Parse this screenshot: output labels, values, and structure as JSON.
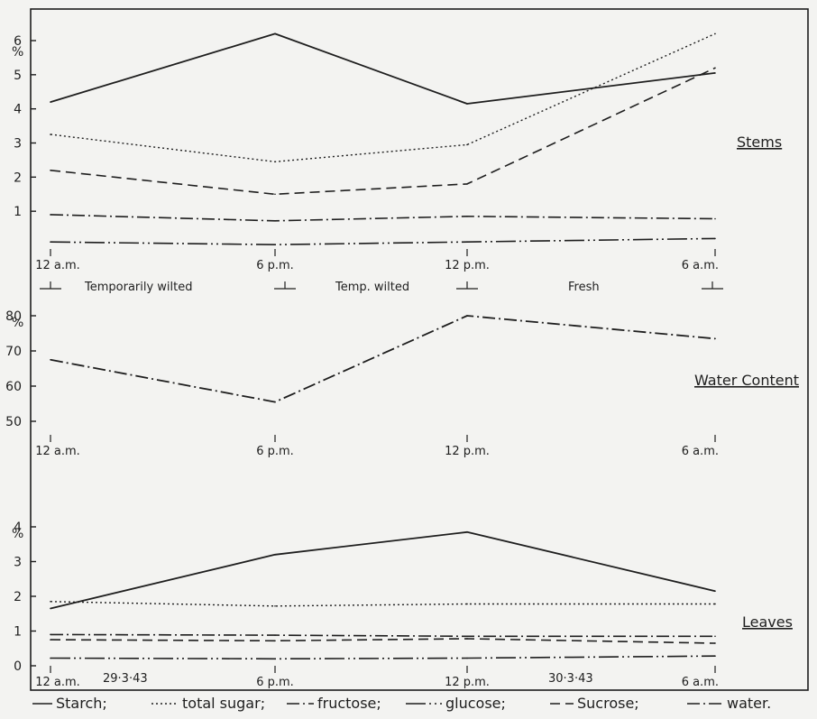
{
  "chart_data": [
    {
      "type": "line",
      "title": "Stems",
      "x": [
        "12 a.m.",
        "6 p.m.",
        "12 p.m.",
        "6 a.m."
      ],
      "y_unit": "%",
      "ylim": [
        0,
        6.3
      ],
      "yticks": [
        "1",
        "2",
        "3",
        "4",
        "5",
        "6"
      ],
      "annotations": [
        "Temporarily wilted",
        "Temp. wilted",
        "Fresh"
      ],
      "series": [
        {
          "name": "Starch",
          "values": [
            4.2,
            6.2,
            4.15,
            5.05
          ]
        },
        {
          "name": "total sugar",
          "values": [
            3.25,
            2.45,
            2.95,
            6.2
          ]
        },
        {
          "name": "Sucrose",
          "values": [
            2.2,
            1.5,
            1.8,
            5.2
          ]
        },
        {
          "name": "fructose",
          "values": [
            0.9,
            0.72,
            0.85,
            0.78
          ]
        },
        {
          "name": "glucose",
          "values": [
            0.1,
            0.02,
            0.1,
            0.2
          ]
        }
      ]
    },
    {
      "type": "line",
      "title": "Water Content",
      "x": [
        "12 a.m.",
        "6 p.m.",
        "12 p.m.",
        "6 a.m."
      ],
      "y_unit": "%",
      "ylim": [
        45,
        82
      ],
      "yticks": [
        "50",
        "60",
        "70",
        "80"
      ],
      "series": [
        {
          "name": "water",
          "values": [
            67.5,
            55.5,
            80,
            73.5
          ]
        }
      ]
    },
    {
      "type": "line",
      "title": "Leaves",
      "x": [
        "12 a.m.",
        "6 p.m.",
        "12 p.m.",
        "6 a.m."
      ],
      "y_unit": "%",
      "ylim": [
        0,
        4.2
      ],
      "yticks": [
        "0",
        "1",
        "2",
        "3",
        "4"
      ],
      "dates": [
        "29·3·43",
        "30·3·43"
      ],
      "series": [
        {
          "name": "Starch",
          "values": [
            1.65,
            3.2,
            3.85,
            2.15
          ]
        },
        {
          "name": "total sugar",
          "values": [
            1.85,
            1.72,
            1.78,
            1.78
          ]
        },
        {
          "name": "fructose",
          "values": [
            0.9,
            0.88,
            0.85,
            0.85
          ]
        },
        {
          "name": "Sucrose",
          "values": [
            0.75,
            0.72,
            0.78,
            0.65
          ]
        },
        {
          "name": "glucose",
          "values": [
            0.22,
            0.2,
            0.22,
            0.28
          ]
        }
      ]
    }
  ],
  "labels": {
    "stems_x": [
      "12 a.m.",
      "6 p.m.",
      "12 p.m.",
      "6 a.m."
    ],
    "water_x": [
      "12 a.m.",
      "6 p.m.",
      "12 p.m.",
      "6 a.m."
    ],
    "leaves_x": [
      "12 a.m.",
      "6 p.m.",
      "12 p.m.",
      "6 a.m."
    ],
    "pct": "%"
  },
  "legend": {
    "items": [
      {
        "label": "Starch;"
      },
      {
        "label": "total sugar;"
      },
      {
        "label": "fructose;"
      },
      {
        "label": "glucose;"
      },
      {
        "label": "Sucrose;"
      },
      {
        "label": "water."
      }
    ]
  },
  "colors": {
    "ink": "#1e1e1e",
    "paper": "#f3f3f1"
  }
}
